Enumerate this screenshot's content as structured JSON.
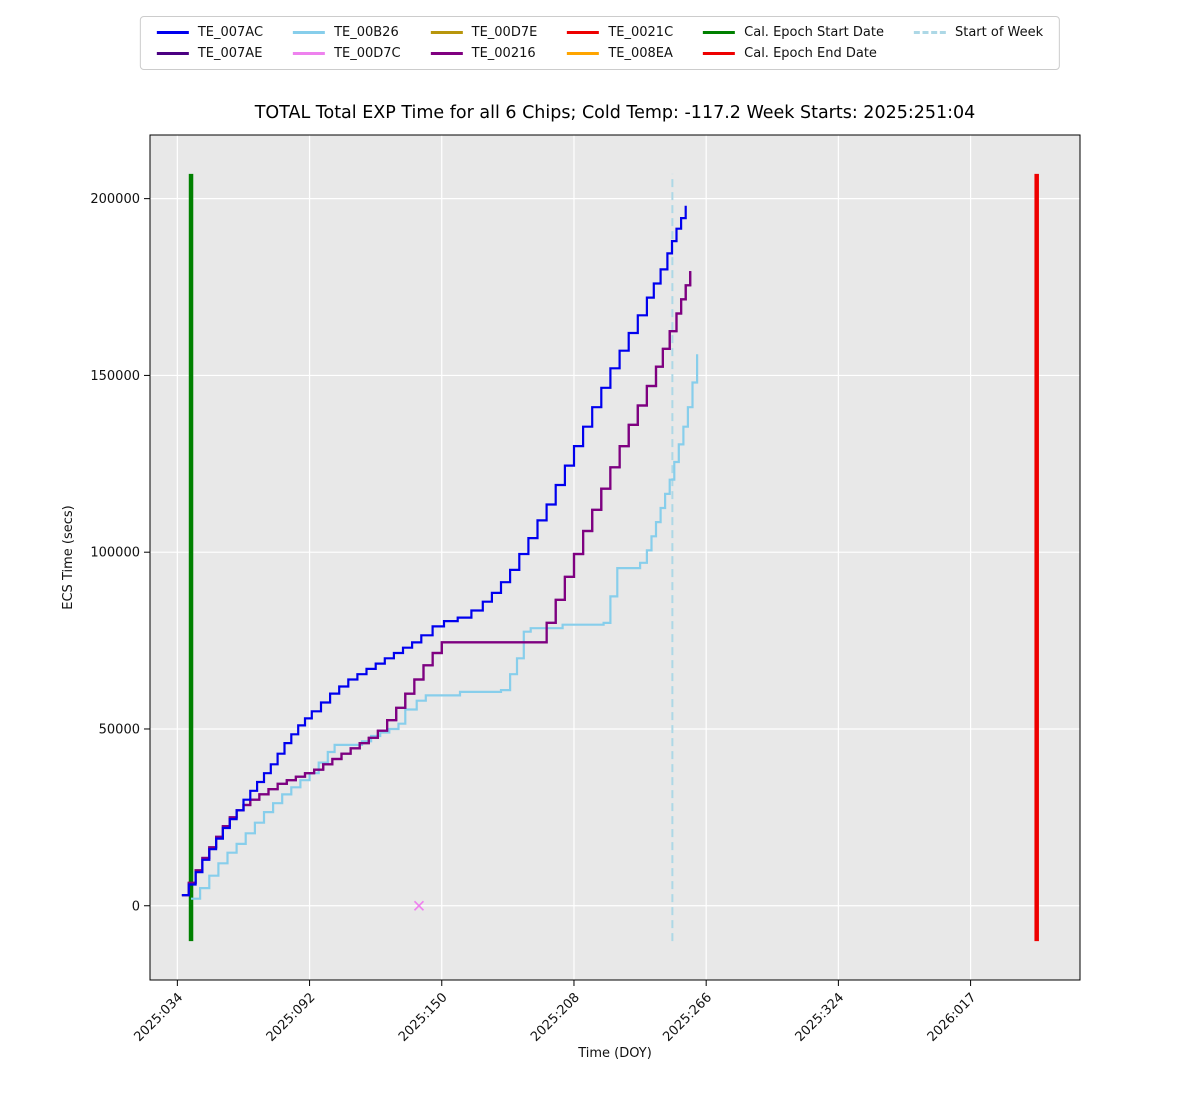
{
  "figure": {
    "title": "TOTAL Total EXP Time for all 6 Chips; Cold Temp: -117.2 Week Starts: 2025:251:04"
  },
  "legend": {
    "columns": [
      [
        {
          "label": "TE_007AC",
          "color": "#0000ee",
          "dash": "solid"
        },
        {
          "label": "TE_007AE",
          "color": "#4b0082",
          "dash": "solid"
        }
      ],
      [
        {
          "label": "TE_00B26",
          "color": "#87ceeb",
          "dash": "solid"
        },
        {
          "label": "TE_00D7C",
          "color": "#ee82ee",
          "dash": "solid"
        }
      ],
      [
        {
          "label": "TE_00D7E",
          "color": "#b8960c",
          "dash": "solid"
        },
        {
          "label": "TE_00216",
          "color": "#800080",
          "dash": "solid"
        }
      ],
      [
        {
          "label": "TE_0021C",
          "color": "#ee0000",
          "dash": "solid"
        },
        {
          "label": "TE_008EA",
          "color": "#ffa500",
          "dash": "solid"
        }
      ],
      [
        {
          "label": "Cal. Epoch Start Date",
          "color": "#008000",
          "dash": "solid"
        },
        {
          "label": "Cal. Epoch End Date",
          "color": "#ee0000",
          "dash": "solid"
        }
      ],
      [
        {
          "label": "Start of Week",
          "color": "#add8e6",
          "dash": "dashed"
        }
      ]
    ]
  },
  "chart_data": {
    "type": "line",
    "title": "TOTAL Total EXP Time for all 6 Chips; Cold Temp: -117.2 Week Starts: 2025:251:04",
    "xlabel": "Time (DOY)",
    "ylabel": "ECS Time (secs)",
    "step_mode": "post",
    "plot_bg": "#e8e8e8",
    "grid_color": "#ffffff",
    "grid": true,
    "xlim": [
      22,
      430
    ],
    "ylim": [
      -21000,
      218000
    ],
    "x_ticks": [
      {
        "day": 34,
        "label": "2025:034"
      },
      {
        "day": 92,
        "label": "2025:092"
      },
      {
        "day": 150,
        "label": "2025:150"
      },
      {
        "day": 208,
        "label": "2025:208"
      },
      {
        "day": 266,
        "label": "2025:266"
      },
      {
        "day": 324,
        "label": "2025:324"
      },
      {
        "day": 382,
        "label": "2026:017"
      }
    ],
    "y_ticks": [
      0,
      50000,
      100000,
      150000,
      200000
    ],
    "vlines": [
      {
        "name": "Cal. Epoch Start Date",
        "x": 40,
        "y0": -10000,
        "y1": 207000,
        "color": "#008000",
        "width": 4.5,
        "dash": "solid"
      },
      {
        "name": "Start of Week",
        "x": 251.17,
        "y0": -10000,
        "y1": 207000,
        "color": "#add8e6",
        "width": 2,
        "dash": "dashed"
      },
      {
        "name": "Cal. Epoch End Date",
        "x": 411,
        "y0": -10000,
        "y1": 207000,
        "color": "#ee0000",
        "width": 4.5,
        "dash": "solid"
      }
    ],
    "markers": [
      {
        "name": "TE_00D7C",
        "shape": "x",
        "x": 140,
        "y": 0,
        "color": "#ee82ee"
      }
    ],
    "series": [
      {
        "name": "TE_00B26",
        "color": "#87ceeb",
        "points": [
          [
            40,
            2000
          ],
          [
            44,
            5000
          ],
          [
            48,
            8500
          ],
          [
            52,
            12000
          ],
          [
            56,
            15000
          ],
          [
            60,
            17500
          ],
          [
            64,
            20500
          ],
          [
            68,
            23500
          ],
          [
            72,
            26500
          ],
          [
            76,
            29000
          ],
          [
            80,
            31500
          ],
          [
            84,
            33500
          ],
          [
            88,
            35500
          ],
          [
            92,
            37500
          ],
          [
            96,
            40500
          ],
          [
            100,
            43500
          ],
          [
            103,
            45500
          ],
          [
            115,
            46500
          ],
          [
            119,
            48000
          ],
          [
            123,
            49000
          ],
          [
            127,
            50000
          ],
          [
            131,
            51500
          ],
          [
            134,
            55500
          ],
          [
            139,
            58000
          ],
          [
            143,
            59500
          ],
          [
            158,
            60500
          ],
          [
            176,
            61000
          ],
          [
            180,
            65500
          ],
          [
            183,
            70000
          ],
          [
            186,
            77500
          ],
          [
            189,
            78500
          ],
          [
            203,
            79500
          ],
          [
            221,
            80000
          ],
          [
            224,
            87500
          ],
          [
            227,
            95500
          ],
          [
            237,
            97000
          ],
          [
            240,
            100500
          ],
          [
            242,
            104500
          ],
          [
            244,
            108500
          ],
          [
            246,
            112500
          ],
          [
            248,
            116500
          ],
          [
            250,
            120500
          ],
          [
            252,
            125500
          ],
          [
            254,
            130500
          ],
          [
            256,
            135500
          ],
          [
            258,
            141000
          ],
          [
            260,
            148000
          ],
          [
            262,
            156000
          ]
        ]
      },
      {
        "name": "TE_007AE",
        "color": "#4b0082",
        "points": [
          [
            36,
            3000
          ],
          [
            39,
            6500
          ],
          [
            42,
            10000
          ],
          [
            45,
            13500
          ],
          [
            48,
            16500
          ],
          [
            51,
            19500
          ],
          [
            54,
            22500
          ],
          [
            57,
            25000
          ],
          [
            60,
            27000
          ],
          [
            63,
            28500
          ],
          [
            66,
            30000
          ],
          [
            70,
            31500
          ],
          [
            74,
            33000
          ],
          [
            78,
            34500
          ],
          [
            82,
            35500
          ],
          [
            86,
            36500
          ],
          [
            90,
            37500
          ],
          [
            94,
            38500
          ],
          [
            98,
            40000
          ],
          [
            102,
            41500
          ],
          [
            106,
            43000
          ],
          [
            110,
            44500
          ],
          [
            114,
            46000
          ],
          [
            118,
            47500
          ],
          [
            122,
            49500
          ],
          [
            126,
            52500
          ],
          [
            130,
            56000
          ],
          [
            134,
            60000
          ],
          [
            138,
            64000
          ],
          [
            142,
            68000
          ],
          [
            146,
            71500
          ],
          [
            150,
            74500
          ],
          [
            196,
            80000
          ],
          [
            200,
            86500
          ],
          [
            204,
            93000
          ],
          [
            208,
            99500
          ],
          [
            212,
            106000
          ],
          [
            216,
            112000
          ],
          [
            220,
            118000
          ],
          [
            224,
            124000
          ],
          [
            228,
            130000
          ],
          [
            232,
            136000
          ],
          [
            236,
            141500
          ],
          [
            240,
            147000
          ],
          [
            244,
            152500
          ],
          [
            247,
            157500
          ],
          [
            250,
            162500
          ],
          [
            253,
            167500
          ],
          [
            255,
            171500
          ],
          [
            257,
            175500
          ],
          [
            259,
            179500
          ]
        ]
      },
      {
        "name": "TE_00216",
        "color": "#800080",
        "points": [
          [
            36,
            3000
          ],
          [
            39,
            6500
          ],
          [
            42,
            10000
          ],
          [
            45,
            13500
          ],
          [
            48,
            16500
          ],
          [
            51,
            19500
          ],
          [
            54,
            22500
          ],
          [
            57,
            25000
          ],
          [
            60,
            27000
          ],
          [
            63,
            28500
          ],
          [
            66,
            30000
          ],
          [
            70,
            31500
          ],
          [
            74,
            33000
          ],
          [
            78,
            34500
          ],
          [
            82,
            35500
          ],
          [
            86,
            36500
          ],
          [
            90,
            37500
          ],
          [
            94,
            38500
          ],
          [
            98,
            40000
          ],
          [
            102,
            41500
          ],
          [
            106,
            43000
          ],
          [
            110,
            44500
          ],
          [
            114,
            46000
          ],
          [
            118,
            47500
          ],
          [
            122,
            49500
          ],
          [
            126,
            52500
          ],
          [
            130,
            56000
          ],
          [
            134,
            60000
          ],
          [
            138,
            64000
          ],
          [
            142,
            68000
          ],
          [
            146,
            71500
          ],
          [
            150,
            74500
          ],
          [
            196,
            80000
          ],
          [
            200,
            86500
          ],
          [
            204,
            93000
          ],
          [
            208,
            99500
          ],
          [
            212,
            106000
          ],
          [
            216,
            112000
          ],
          [
            220,
            118000
          ],
          [
            224,
            124000
          ],
          [
            228,
            130000
          ],
          [
            232,
            136000
          ],
          [
            236,
            141500
          ],
          [
            240,
            147000
          ],
          [
            244,
            152500
          ],
          [
            247,
            157500
          ],
          [
            250,
            162500
          ],
          [
            253,
            167500
          ],
          [
            255,
            171500
          ],
          [
            257,
            175500
          ],
          [
            259,
            179500
          ]
        ]
      },
      {
        "name": "TE_007AC",
        "color": "#0000ee",
        "points": [
          [
            36,
            3000
          ],
          [
            39,
            6000
          ],
          [
            42,
            9500
          ],
          [
            45,
            13000
          ],
          [
            48,
            16000
          ],
          [
            51,
            19000
          ],
          [
            54,
            22000
          ],
          [
            57,
            24500
          ],
          [
            60,
            27000
          ],
          [
            63,
            30000
          ],
          [
            66,
            32500
          ],
          [
            69,
            35000
          ],
          [
            72,
            37500
          ],
          [
            75,
            40000
          ],
          [
            78,
            43000
          ],
          [
            81,
            46000
          ],
          [
            84,
            48500
          ],
          [
            87,
            51000
          ],
          [
            90,
            53000
          ],
          [
            93,
            55000
          ],
          [
            97,
            57500
          ],
          [
            101,
            60000
          ],
          [
            105,
            62000
          ],
          [
            109,
            64000
          ],
          [
            113,
            65500
          ],
          [
            117,
            67000
          ],
          [
            121,
            68500
          ],
          [
            125,
            70000
          ],
          [
            129,
            71500
          ],
          [
            133,
            73000
          ],
          [
            137,
            74500
          ],
          [
            141,
            76500
          ],
          [
            146,
            79000
          ],
          [
            151,
            80500
          ],
          [
            157,
            81500
          ],
          [
            163,
            83500
          ],
          [
            168,
            86000
          ],
          [
            172,
            88500
          ],
          [
            176,
            91500
          ],
          [
            180,
            95000
          ],
          [
            184,
            99500
          ],
          [
            188,
            104000
          ],
          [
            192,
            109000
          ],
          [
            196,
            113500
          ],
          [
            200,
            119000
          ],
          [
            204,
            124500
          ],
          [
            208,
            130000
          ],
          [
            212,
            135500
          ],
          [
            216,
            141000
          ],
          [
            220,
            146500
          ],
          [
            224,
            152000
          ],
          [
            228,
            157000
          ],
          [
            232,
            162000
          ],
          [
            236,
            167000
          ],
          [
            240,
            172000
          ],
          [
            243,
            176000
          ],
          [
            246,
            180000
          ],
          [
            249,
            184500
          ],
          [
            251,
            188000
          ],
          [
            253,
            191500
          ],
          [
            255,
            194500
          ],
          [
            257,
            198000
          ]
        ]
      },
      {
        "name": "TE_00D7E",
        "color": "#b8960c",
        "points": []
      },
      {
        "name": "TE_0021C",
        "color": "#ee0000",
        "points": []
      },
      {
        "name": "TE_008EA",
        "color": "#ffa500",
        "points": []
      }
    ]
  }
}
